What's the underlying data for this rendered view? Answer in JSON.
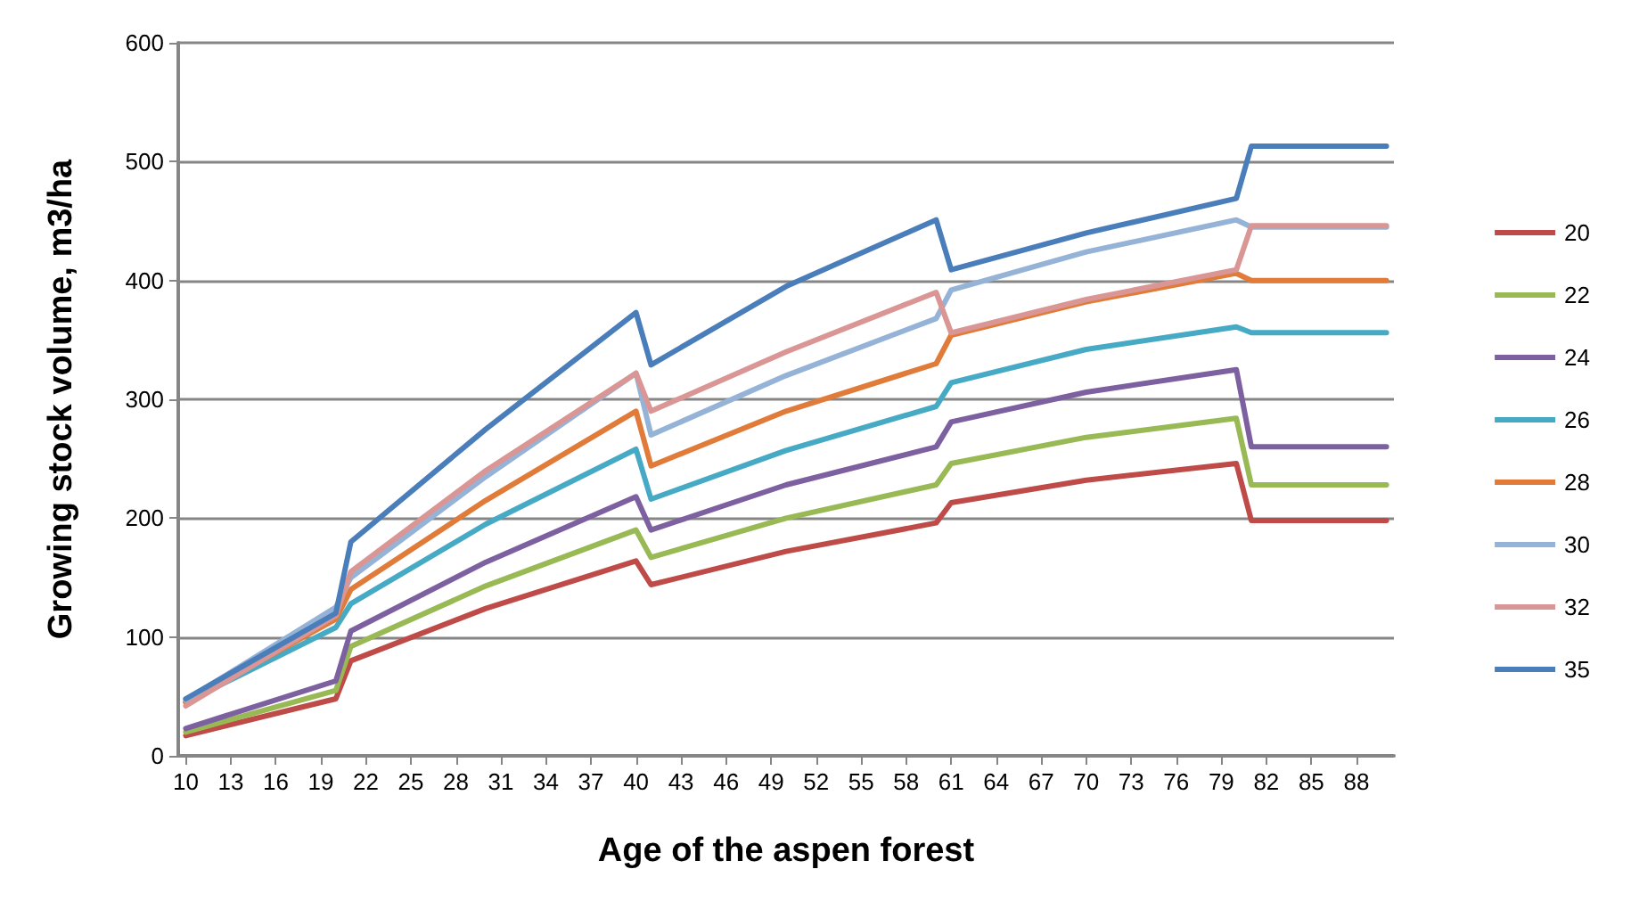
{
  "chart_data": {
    "type": "line",
    "xlabel": "Age of the aspen forest",
    "ylabel": "Growing stock volume, m3/ha",
    "x": [
      10,
      20,
      21,
      30,
      40,
      41,
      50,
      60,
      61,
      70,
      80,
      81,
      90
    ],
    "series": [
      {
        "name": "20",
        "color": "#be4b48",
        "values": [
          17,
          48,
          80,
          124,
          164,
          144,
          172,
          196,
          213,
          232,
          246,
          198,
          198
        ]
      },
      {
        "name": "22",
        "color": "#98b954",
        "values": [
          20,
          55,
          92,
          143,
          190,
          167,
          200,
          228,
          246,
          268,
          284,
          228,
          228
        ]
      },
      {
        "name": "24",
        "color": "#7d60a0",
        "values": [
          23,
          63,
          105,
          163,
          218,
          190,
          228,
          260,
          281,
          306,
          325,
          260,
          260
        ]
      },
      {
        "name": "26",
        "color": "#46aac5",
        "values": [
          45,
          108,
          128,
          195,
          258,
          216,
          257,
          294,
          314,
          342,
          361,
          356,
          356
        ]
      },
      {
        "name": "28",
        "color": "#e07b39",
        "values": [
          45,
          115,
          140,
          215,
          290,
          244,
          290,
          330,
          354,
          382,
          406,
          400,
          400
        ]
      },
      {
        "name": "30",
        "color": "#95b3d7",
        "values": [
          47,
          125,
          150,
          235,
          322,
          270,
          320,
          368,
          392,
          424,
          451,
          445,
          445
        ]
      },
      {
        "name": "32",
        "color": "#d99694",
        "values": [
          42,
          118,
          155,
          240,
          322,
          290,
          340,
          390,
          356,
          384,
          409,
          446,
          446
        ]
      },
      {
        "name": "35",
        "color": "#4a7ebb",
        "values": [
          48,
          120,
          180,
          275,
          373,
          329,
          395,
          451,
          409,
          440,
          469,
          513,
          513
        ]
      }
    ],
    "xlim": [
      9.5,
      90.5
    ],
    "xticks": [
      10,
      13,
      16,
      19,
      22,
      25,
      28,
      31,
      34,
      37,
      40,
      43,
      46,
      49,
      52,
      55,
      58,
      61,
      64,
      67,
      70,
      73,
      76,
      79,
      82,
      85,
      88
    ],
    "ylim": [
      0,
      600
    ],
    "yticks": [
      0,
      100,
      200,
      300,
      400,
      500,
      600
    ],
    "grid": "y",
    "legend": "right",
    "marker": "none",
    "line_style": "solid"
  }
}
